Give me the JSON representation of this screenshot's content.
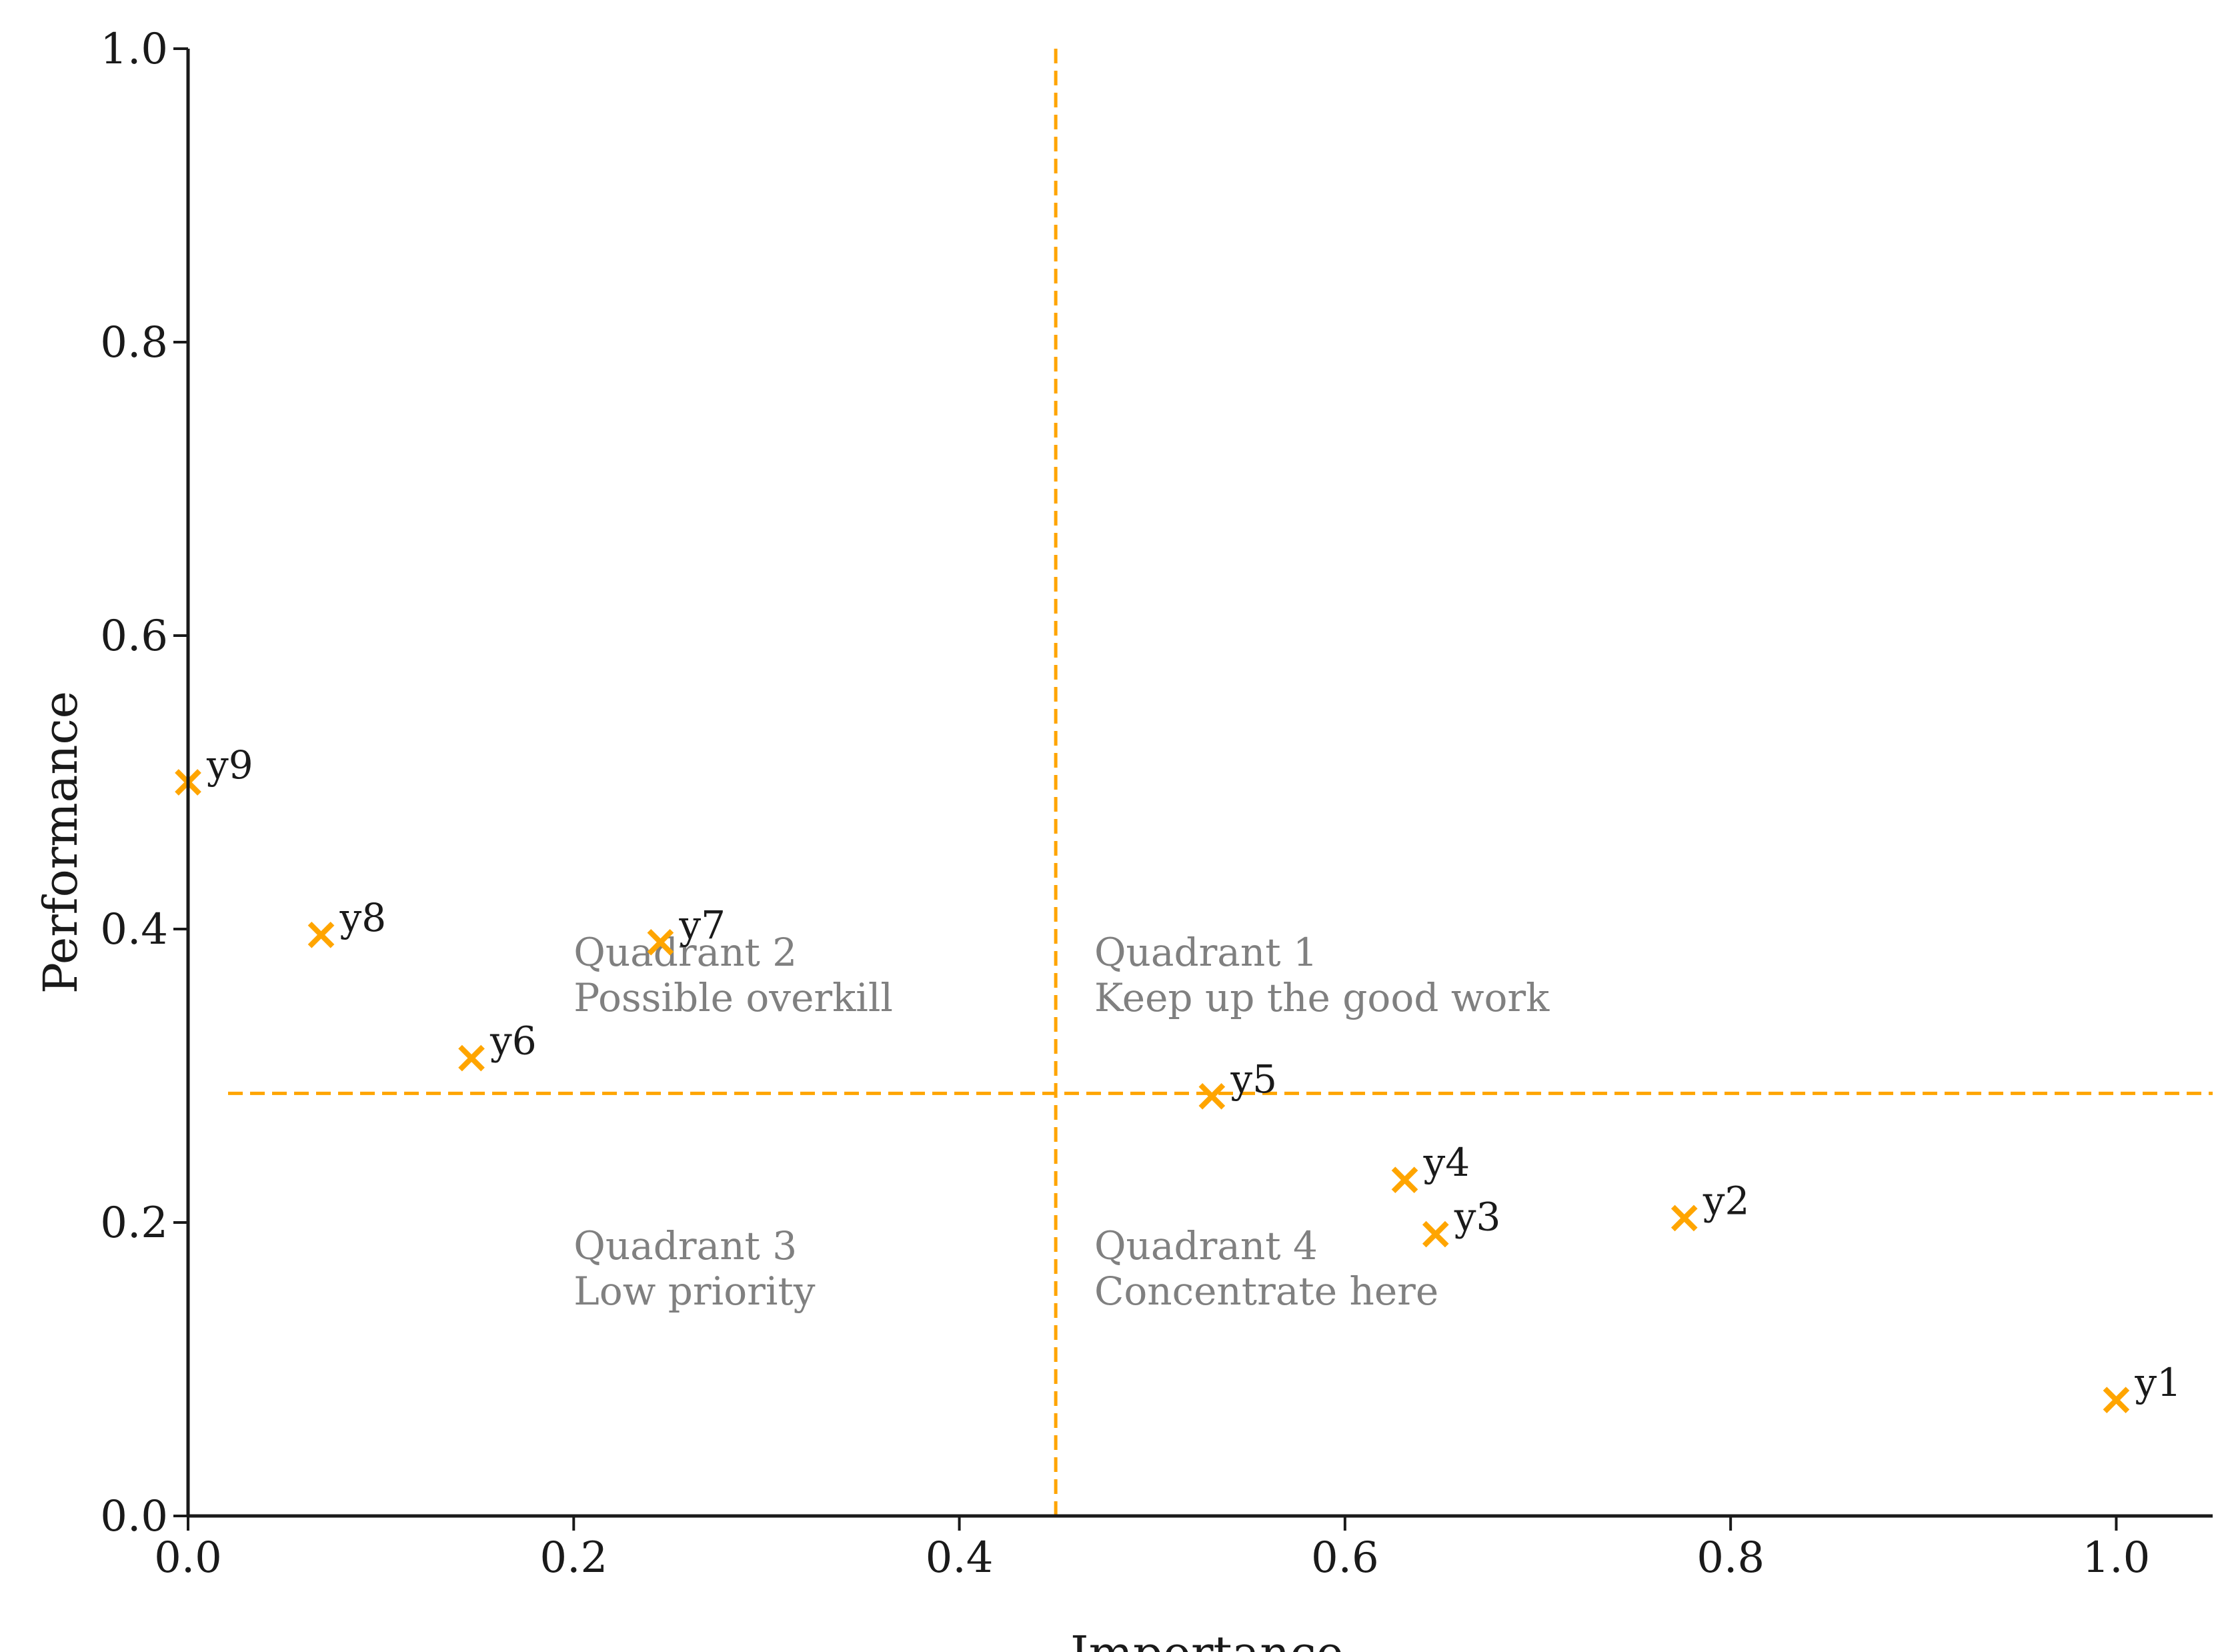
{
  "chart_data": {
    "type": "scatter",
    "title": "",
    "xlabel": "Importance",
    "ylabel": "Performance",
    "xlim": [
      0.0,
      1.05
    ],
    "ylim": [
      0.0,
      1.0
    ],
    "xticks": [
      "0.0",
      "0.2",
      "0.4",
      "0.6",
      "0.8",
      "1.0"
    ],
    "yticks": [
      "0.0",
      "0.2",
      "0.4",
      "0.6",
      "0.8",
      "1.0"
    ],
    "grid": false,
    "marker": "x",
    "marker_color": "#FFA500",
    "text_color": "#1a1a1a",
    "quadrant_text_color": "#808080",
    "reference_lines": {
      "x": 0.45,
      "y": 0.288,
      "color": "#FFA500",
      "style": "dashed"
    },
    "points": [
      {
        "label": "y1",
        "x": 1.0,
        "y": 0.079
      },
      {
        "label": "y2",
        "x": 0.776,
        "y": 0.203
      },
      {
        "label": "y3",
        "x": 0.647,
        "y": 0.192
      },
      {
        "label": "y4",
        "x": 0.631,
        "y": 0.229
      },
      {
        "label": "y5",
        "x": 0.531,
        "y": 0.286
      },
      {
        "label": "y6",
        "x": 0.147,
        "y": 0.312
      },
      {
        "label": "y7",
        "x": 0.245,
        "y": 0.391
      },
      {
        "label": "y8",
        "x": 0.069,
        "y": 0.396
      },
      {
        "label": "y9",
        "x": 0.0,
        "y": 0.5
      }
    ],
    "quadrants": [
      {
        "id": "q2",
        "title": "Quadrant 2",
        "subtitle": "Possible overkill",
        "x": 0.2,
        "y": 0.375
      },
      {
        "id": "q1",
        "title": "Quadrant 1",
        "subtitle": "Keep up the good work",
        "x": 0.47,
        "y": 0.375
      },
      {
        "id": "q3",
        "title": "Quadrant 3",
        "subtitle": "Low priority",
        "x": 0.2,
        "y": 0.175
      },
      {
        "id": "q4",
        "title": "Quadrant 4",
        "subtitle": "Concentrate here",
        "x": 0.47,
        "y": 0.175
      }
    ]
  }
}
